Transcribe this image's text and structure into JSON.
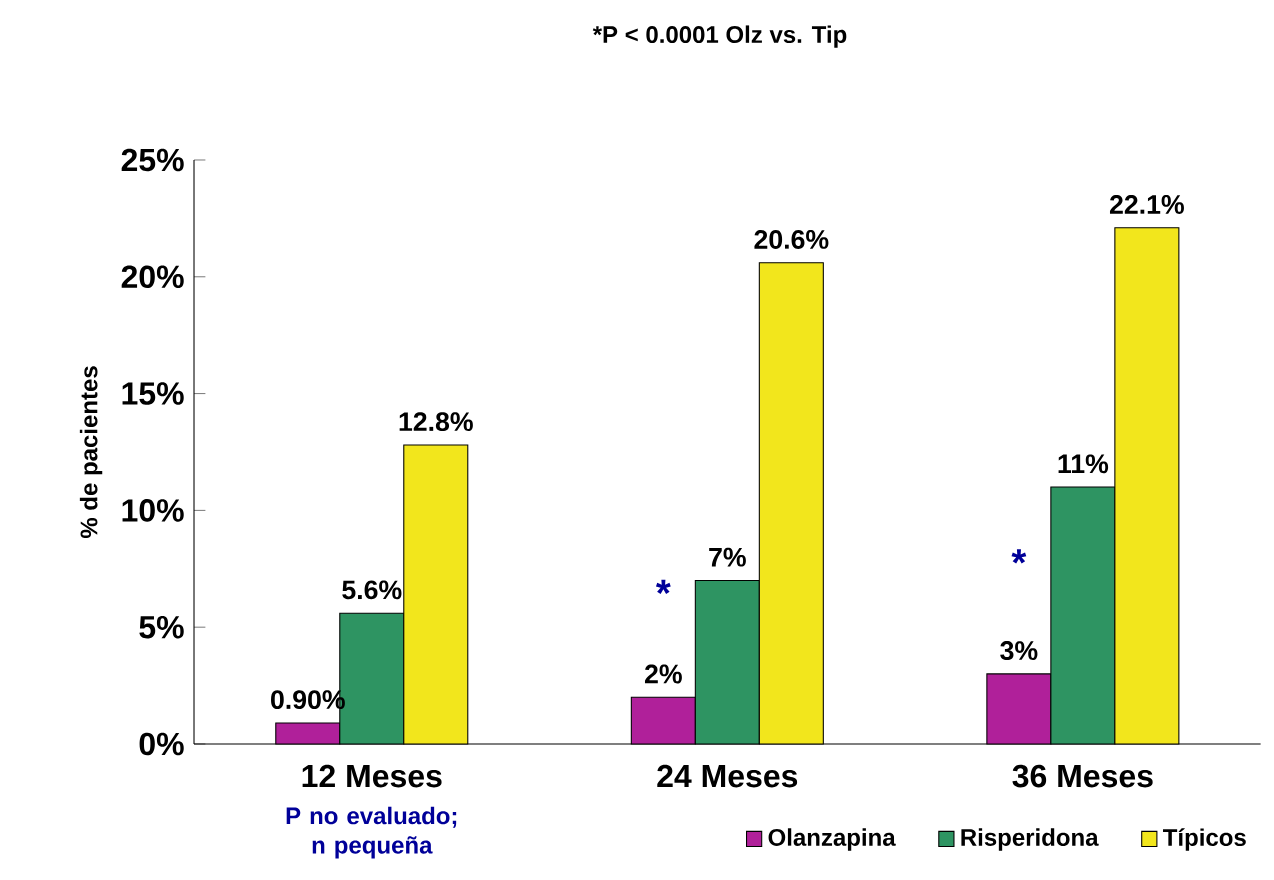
{
  "chart_data": {
    "type": "bar",
    "title": "*P < 0.0001 Olz vs. Tip",
    "ylabel": "% de pacientes",
    "categories": [
      "12 Meses",
      "24 Meses",
      "36 Meses"
    ],
    "series": [
      {
        "name": "Olanzapina",
        "color": "#b0209a",
        "values": [
          0.9,
          2,
          3
        ],
        "value_labels": [
          "0.90%",
          "2%",
          "3%"
        ]
      },
      {
        "name": "Risperidona",
        "color": "#2e9462",
        "values": [
          5.6,
          7,
          11
        ],
        "value_labels": [
          "5.6%",
          "7%",
          "11%"
        ]
      },
      {
        "name": "Típicos",
        "color": "#f2e61c",
        "values": [
          12.8,
          20.6,
          22.1
        ],
        "value_labels": [
          "12.8%",
          "20.6%",
          "22.1%"
        ]
      }
    ],
    "ylim": [
      0,
      25
    ],
    "yticks": [
      {
        "value": 0,
        "label": "0%"
      },
      {
        "value": 5,
        "label": "5%"
      },
      {
        "value": 10,
        "label": "10%"
      },
      {
        "value": 15,
        "label": "15%"
      },
      {
        "value": 20,
        "label": "20%"
      },
      {
        "value": 25,
        "label": "25%"
      }
    ],
    "annotations": [
      "*",
      "*",
      "P no evaluado; n pequeña"
    ],
    "legend": "bottom right",
    "grid": false
  }
}
